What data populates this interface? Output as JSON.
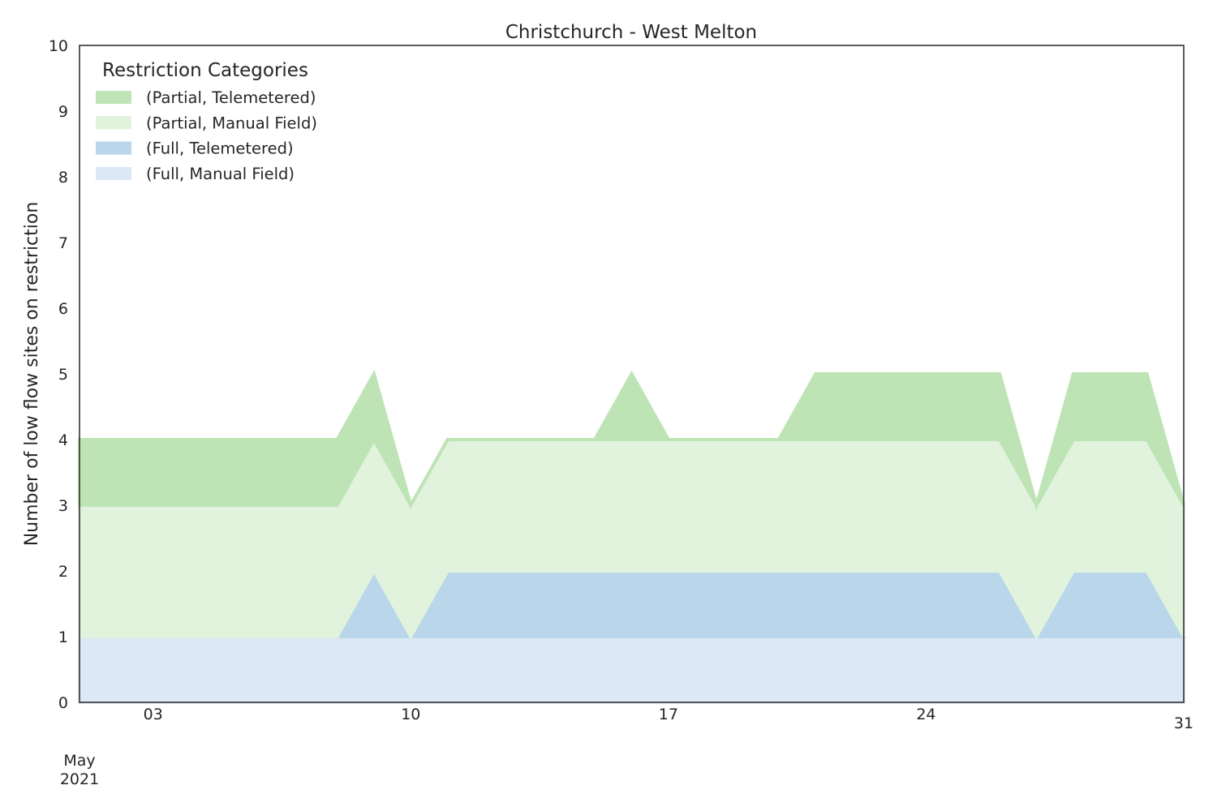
{
  "chart_data": {
    "type": "area",
    "stacked": true,
    "title": "Christchurch - West Melton",
    "xlabel": "",
    "ylabel": "Number of low flow sites on restriction",
    "ylim": [
      0,
      10
    ],
    "y_ticks": [
      0,
      1,
      2,
      3,
      4,
      5,
      6,
      7,
      8,
      9,
      10
    ],
    "x_range": [
      "2021-05-01",
      "2021-05-31"
    ],
    "x_ticks": [
      {
        "date": "2021-05-03",
        "label": "03"
      },
      {
        "date": "2021-05-10",
        "label": "10"
      },
      {
        "date": "2021-05-17",
        "label": "17"
      },
      {
        "date": "2021-05-24",
        "label": "24"
      },
      {
        "date": "2021-05-31",
        "label": "31"
      }
    ],
    "x_secondary_label": [
      "May",
      "2021"
    ],
    "grid": false,
    "legend": {
      "title": "Restriction Categories",
      "placement": "top-left"
    },
    "x": [
      "2021-05-01",
      "2021-05-02",
      "2021-05-03",
      "2021-05-04",
      "2021-05-05",
      "2021-05-06",
      "2021-05-07",
      "2021-05-08",
      "2021-05-09",
      "2021-05-10",
      "2021-05-11",
      "2021-05-12",
      "2021-05-13",
      "2021-05-14",
      "2021-05-15",
      "2021-05-16",
      "2021-05-17",
      "2021-05-18",
      "2021-05-19",
      "2021-05-20",
      "2021-05-21",
      "2021-05-22",
      "2021-05-23",
      "2021-05-24",
      "2021-05-25",
      "2021-05-26",
      "2021-05-27",
      "2021-05-28",
      "2021-05-29",
      "2021-05-30",
      "2021-05-31"
    ],
    "series": [
      {
        "name": "(Full, Manual Field)",
        "color": "#dce8f5",
        "values": [
          1,
          1,
          1,
          1,
          1,
          1,
          1,
          1,
          1,
          1,
          1,
          1,
          1,
          1,
          1,
          1,
          1,
          1,
          1,
          1,
          1,
          1,
          1,
          1,
          1,
          1,
          1,
          1,
          1,
          1,
          1
        ]
      },
      {
        "name": "(Full, Telemetered)",
        "color": "#b9d6ea",
        "values": [
          0,
          0,
          0,
          0,
          0,
          0,
          0,
          0,
          1,
          0,
          1,
          1,
          1,
          1,
          1,
          1,
          1,
          1,
          1,
          1,
          1,
          1,
          1,
          1,
          1,
          1,
          0,
          1,
          1,
          1,
          0
        ]
      },
      {
        "name": "(Partial, Manual Field)",
        "color": "#e1f2dd",
        "values": [
          2,
          2,
          2,
          2,
          2,
          2,
          2,
          2,
          2,
          2,
          2,
          2,
          2,
          2,
          2,
          2,
          2,
          2,
          2,
          2,
          2,
          2,
          2,
          2,
          2,
          2,
          2,
          2,
          2,
          2,
          2
        ]
      },
      {
        "name": "(Partial, Telemetered)",
        "color": "#bee4b5",
        "values": [
          1,
          1,
          1,
          1,
          1,
          1,
          1,
          1,
          1,
          0,
          0,
          0,
          0,
          0,
          0,
          1,
          0,
          0,
          0,
          0,
          1,
          1,
          1,
          1,
          1,
          1,
          0,
          1,
          1,
          1,
          0
        ]
      }
    ]
  }
}
